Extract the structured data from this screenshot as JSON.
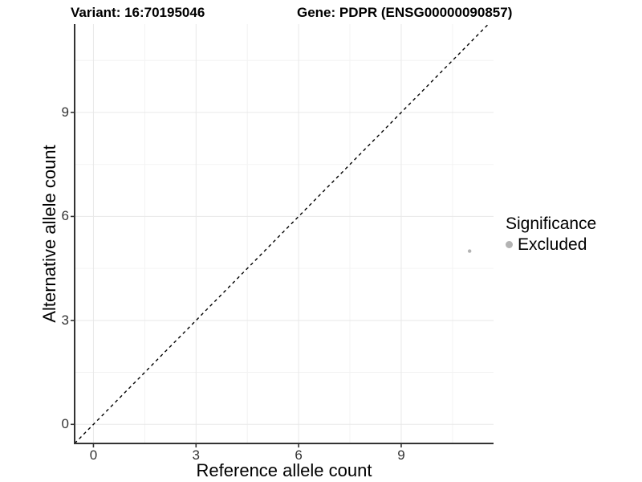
{
  "titles": {
    "variant": "Variant: 16:70195046",
    "gene": "Gene: PDPR (ENSG00000090857)"
  },
  "legend": {
    "title": "Significance",
    "items": [
      {
        "label": "Excluded",
        "color": "#b3b3b3"
      }
    ]
  },
  "chart_data": {
    "type": "scatter",
    "title": "Variant: 16:70195046  /  Gene: PDPR (ENSG00000090857)",
    "xlabel": "Reference allele count",
    "ylabel": "Alternative allele count",
    "xticks": [
      0,
      3,
      6,
      9
    ],
    "yticks": [
      0,
      3,
      6,
      9
    ],
    "minor_xticks": [
      1.5,
      4.5,
      7.5,
      10.5
    ],
    "minor_yticks": [
      1.5,
      4.5,
      7.5,
      10.5
    ],
    "xlim": [
      -0.55,
      11.7
    ],
    "ylim": [
      -0.55,
      11.55
    ],
    "grid": {
      "major_color": "#e8e8e8",
      "minor_color": "#f3f3f3"
    },
    "axis_color": "#333333",
    "identity_line": {
      "style": "dashed",
      "color": "#000000",
      "from": -0.55,
      "to": 11.55
    },
    "series": [
      {
        "name": "Excluded",
        "color": "#b3b3b3",
        "points": [
          {
            "x": 11,
            "y": 5
          }
        ]
      }
    ]
  }
}
